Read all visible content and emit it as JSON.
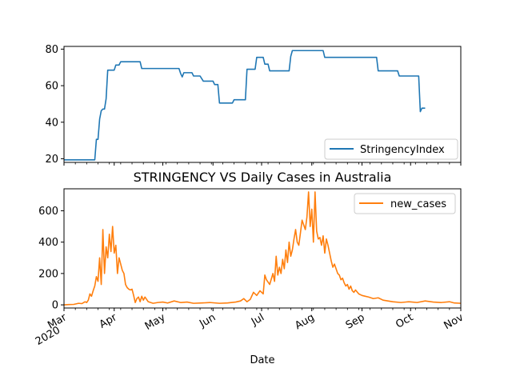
{
  "chart_data": [
    {
      "type": "line",
      "title": "",
      "xlabel": "",
      "ylabel": "",
      "ylim": [
        18,
        81.5
      ],
      "yticks": [
        20,
        40,
        60,
        80
      ],
      "grid": false,
      "legend_position": "lower right",
      "color": "#1f77b4",
      "series": [
        {
          "name": "StringencyIndex",
          "points": [
            [
              "2020-03-01",
              19.4
            ],
            [
              "2020-03-20",
              19.4
            ],
            [
              "2020-03-21",
              30.6
            ],
            [
              "2020-03-22",
              30.6
            ],
            [
              "2020-03-23",
              41.7
            ],
            [
              "2020-03-24",
              46.3
            ],
            [
              "2020-03-25",
              47.2
            ],
            [
              "2020-03-26",
              47.2
            ],
            [
              "2020-03-27",
              52.8
            ],
            [
              "2020-03-28",
              68.5
            ],
            [
              "2020-04-01",
              68.5
            ],
            [
              "2020-04-02",
              71.3
            ],
            [
              "2020-04-04",
              71.3
            ],
            [
              "2020-04-05",
              73.1
            ],
            [
              "2020-04-17",
              73.1
            ],
            [
              "2020-04-18",
              69.4
            ],
            [
              "2020-05-11",
              69.4
            ],
            [
              "2020-05-12",
              66.7
            ],
            [
              "2020-05-13",
              64.8
            ],
            [
              "2020-05-14",
              67.1
            ],
            [
              "2020-05-19",
              67.1
            ],
            [
              "2020-05-20",
              65.3
            ],
            [
              "2020-05-24",
              65.3
            ],
            [
              "2020-05-25",
              63.9
            ],
            [
              "2020-05-26",
              62.5
            ],
            [
              "2020-06-01",
              62.5
            ],
            [
              "2020-06-02",
              60.6
            ],
            [
              "2020-06-04",
              60.6
            ],
            [
              "2020-06-05",
              50.5
            ],
            [
              "2020-06-13",
              50.5
            ],
            [
              "2020-06-14",
              52.3
            ],
            [
              "2020-06-21",
              52.3
            ],
            [
              "2020-06-22",
              69.0
            ],
            [
              "2020-06-27",
              69.0
            ],
            [
              "2020-06-28",
              75.5
            ],
            [
              "2020-07-02",
              75.5
            ],
            [
              "2020-07-03",
              71.8
            ],
            [
              "2020-07-05",
              71.8
            ],
            [
              "2020-07-06",
              68.1
            ],
            [
              "2020-07-18",
              68.1
            ],
            [
              "2020-07-19",
              76.0
            ],
            [
              "2020-07-20",
              79.2
            ],
            [
              "2020-08-08",
              79.2
            ],
            [
              "2020-08-09",
              75.5
            ],
            [
              "2020-09-10",
              75.5
            ],
            [
              "2020-09-11",
              68.1
            ],
            [
              "2020-09-23",
              68.1
            ],
            [
              "2020-09-24",
              65.3
            ],
            [
              "2020-10-06",
              65.3
            ],
            [
              "2020-10-07",
              45.8
            ],
            [
              "2020-10-08",
              47.7
            ],
            [
              "2020-10-10",
              47.7
            ]
          ]
        }
      ]
    },
    {
      "type": "line",
      "title": "STRINGENCY VS Daily Cases in Australia",
      "xlabel": "Date",
      "ylabel": "",
      "ylim": [
        -20,
        740
      ],
      "yticks": [
        0,
        200,
        400,
        600
      ],
      "grid": false,
      "legend_position": "upper right",
      "color": "#ff7f0e",
      "x_ticks": [
        {
          "date": "2020-03-01",
          "label": "Mar",
          "sublabel": "2020"
        },
        {
          "date": "2020-04-01",
          "label": "Apr",
          "sublabel": ""
        },
        {
          "date": "2020-05-01",
          "label": "May",
          "sublabel": ""
        },
        {
          "date": "2020-06-01",
          "label": "Jun",
          "sublabel": ""
        },
        {
          "date": "2020-07-01",
          "label": "Jul",
          "sublabel": ""
        },
        {
          "date": "2020-08-01",
          "label": "Aug",
          "sublabel": ""
        },
        {
          "date": "2020-09-01",
          "label": "Sep",
          "sublabel": ""
        },
        {
          "date": "2020-10-01",
          "label": "Oct",
          "sublabel": ""
        },
        {
          "date": "2020-11-01",
          "label": "Nov",
          "sublabel": ""
        }
      ],
      "x_range": [
        "2020-03-01",
        "2020-11-01"
      ],
      "series": [
        {
          "name": "new_cases",
          "points": [
            [
              "2020-03-01",
              0
            ],
            [
              "2020-03-04",
              2
            ],
            [
              "2020-03-07",
              3
            ],
            [
              "2020-03-10",
              10
            ],
            [
              "2020-03-12",
              8
            ],
            [
              "2020-03-14",
              20
            ],
            [
              "2020-03-15",
              15
            ],
            [
              "2020-03-16",
              30
            ],
            [
              "2020-03-17",
              70
            ],
            [
              "2020-03-18",
              55
            ],
            [
              "2020-03-19",
              90
            ],
            [
              "2020-03-20",
              120
            ],
            [
              "2020-03-21",
              180
            ],
            [
              "2020-03-22",
              150
            ],
            [
              "2020-03-23",
              300
            ],
            [
              "2020-03-24",
              130
            ],
            [
              "2020-03-25",
              480
            ],
            [
              "2020-03-26",
              200
            ],
            [
              "2020-03-27",
              370
            ],
            [
              "2020-03-28",
              300
            ],
            [
              "2020-03-29",
              450
            ],
            [
              "2020-03-30",
              340
            ],
            [
              "2020-03-31",
              500
            ],
            [
              "2020-04-01",
              330
            ],
            [
              "2020-04-02",
              380
            ],
            [
              "2020-04-03",
              200
            ],
            [
              "2020-04-04",
              300
            ],
            [
              "2020-04-05",
              260
            ],
            [
              "2020-04-06",
              220
            ],
            [
              "2020-04-07",
              200
            ],
            [
              "2020-04-08",
              130
            ],
            [
              "2020-04-09",
              110
            ],
            [
              "2020-04-10",
              100
            ],
            [
              "2020-04-11",
              95
            ],
            [
              "2020-04-12",
              100
            ],
            [
              "2020-04-13",
              60
            ],
            [
              "2020-04-14",
              15
            ],
            [
              "2020-04-15",
              40
            ],
            [
              "2020-04-16",
              50
            ],
            [
              "2020-04-17",
              20
            ],
            [
              "2020-04-18",
              55
            ],
            [
              "2020-04-19",
              30
            ],
            [
              "2020-04-20",
              50
            ],
            [
              "2020-04-22",
              20
            ],
            [
              "2020-04-25",
              10
            ],
            [
              "2020-04-28",
              15
            ],
            [
              "2020-05-01",
              18
            ],
            [
              "2020-05-04",
              12
            ],
            [
              "2020-05-08",
              25
            ],
            [
              "2020-05-12",
              15
            ],
            [
              "2020-05-16",
              18
            ],
            [
              "2020-05-20",
              10
            ],
            [
              "2020-05-25",
              12
            ],
            [
              "2020-05-30",
              15
            ],
            [
              "2020-06-05",
              10
            ],
            [
              "2020-06-10",
              12
            ],
            [
              "2020-06-15",
              18
            ],
            [
              "2020-06-18",
              25
            ],
            [
              "2020-06-20",
              40
            ],
            [
              "2020-06-22",
              20
            ],
            [
              "2020-06-24",
              35
            ],
            [
              "2020-06-26",
              80
            ],
            [
              "2020-06-28",
              60
            ],
            [
              "2020-06-30",
              90
            ],
            [
              "2020-07-02",
              70
            ],
            [
              "2020-07-03",
              190
            ],
            [
              "2020-07-04",
              160
            ],
            [
              "2020-07-06",
              130
            ],
            [
              "2020-07-08",
              200
            ],
            [
              "2020-07-09",
              150
            ],
            [
              "2020-07-10",
              310
            ],
            [
              "2020-07-11",
              190
            ],
            [
              "2020-07-12",
              240
            ],
            [
              "2020-07-13",
              200
            ],
            [
              "2020-07-14",
              290
            ],
            [
              "2020-07-15",
              230
            ],
            [
              "2020-07-16",
              350
            ],
            [
              "2020-07-17",
              270
            ],
            [
              "2020-07-18",
              400
            ],
            [
              "2020-07-19",
              310
            ],
            [
              "2020-07-20",
              350
            ],
            [
              "2020-07-21",
              420
            ],
            [
              "2020-07-22",
              480
            ],
            [
              "2020-07-23",
              400
            ],
            [
              "2020-07-24",
              380
            ],
            [
              "2020-07-25",
              460
            ],
            [
              "2020-07-26",
              540
            ],
            [
              "2020-07-27",
              510
            ],
            [
              "2020-07-28",
              480
            ],
            [
              "2020-07-29",
              560
            ],
            [
              "2020-07-30",
              720
            ],
            [
              "2020-07-31",
              500
            ],
            [
              "2020-08-01",
              610
            ],
            [
              "2020-08-02",
              400
            ],
            [
              "2020-08-03",
              720
            ],
            [
              "2020-08-04",
              470
            ],
            [
              "2020-08-05",
              420
            ],
            [
              "2020-08-06",
              430
            ],
            [
              "2020-08-07",
              380
            ],
            [
              "2020-08-08",
              440
            ],
            [
              "2020-08-09",
              330
            ],
            [
              "2020-08-10",
              420
            ],
            [
              "2020-08-11",
              380
            ],
            [
              "2020-08-12",
              330
            ],
            [
              "2020-08-13",
              280
            ],
            [
              "2020-08-14",
              240
            ],
            [
              "2020-08-15",
              260
            ],
            [
              "2020-08-16",
              230
            ],
            [
              "2020-08-17",
              200
            ],
            [
              "2020-08-18",
              190
            ],
            [
              "2020-08-19",
              160
            ],
            [
              "2020-08-20",
              170
            ],
            [
              "2020-08-21",
              140
            ],
            [
              "2020-08-22",
              120
            ],
            [
              "2020-08-23",
              130
            ],
            [
              "2020-08-24",
              100
            ],
            [
              "2020-08-25",
              120
            ],
            [
              "2020-08-26",
              90
            ],
            [
              "2020-08-27",
              80
            ],
            [
              "2020-08-28",
              95
            ],
            [
              "2020-08-30",
              70
            ],
            [
              "2020-09-01",
              60
            ],
            [
              "2020-09-03",
              55
            ],
            [
              "2020-09-05",
              50
            ],
            [
              "2020-09-08",
              40
            ],
            [
              "2020-09-11",
              45
            ],
            [
              "2020-09-14",
              30
            ],
            [
              "2020-09-17",
              25
            ],
            [
              "2020-09-20",
              20
            ],
            [
              "2020-09-25",
              15
            ],
            [
              "2020-09-30",
              20
            ],
            [
              "2020-10-05",
              15
            ],
            [
              "2020-10-10",
              25
            ],
            [
              "2020-10-15",
              18
            ],
            [
              "2020-10-20",
              15
            ],
            [
              "2020-10-25",
              20
            ],
            [
              "2020-10-28",
              12
            ],
            [
              "2020-11-01",
              10
            ]
          ]
        }
      ]
    }
  ]
}
